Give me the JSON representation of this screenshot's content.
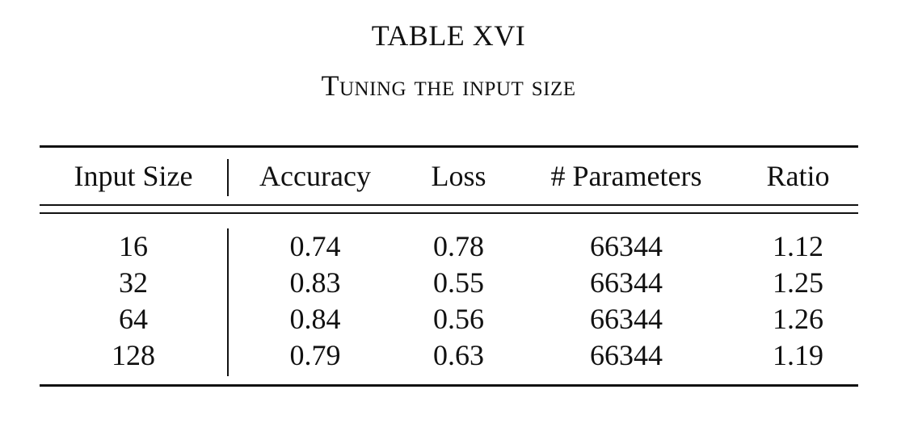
{
  "table": {
    "label": "TABLE XVI",
    "caption": "Tuning the input size",
    "headers": [
      "Input Size",
      "Accuracy",
      "Loss",
      "# Parameters",
      "Ratio"
    ],
    "rows": [
      [
        "16",
        "0.74",
        "0.78",
        "66344",
        "1.12"
      ],
      [
        "32",
        "0.83",
        "0.55",
        "66344",
        "1.25"
      ],
      [
        "64",
        "0.84",
        "0.56",
        "66344",
        "1.26"
      ],
      [
        "128",
        "0.79",
        "0.63",
        "66344",
        "1.19"
      ]
    ]
  }
}
